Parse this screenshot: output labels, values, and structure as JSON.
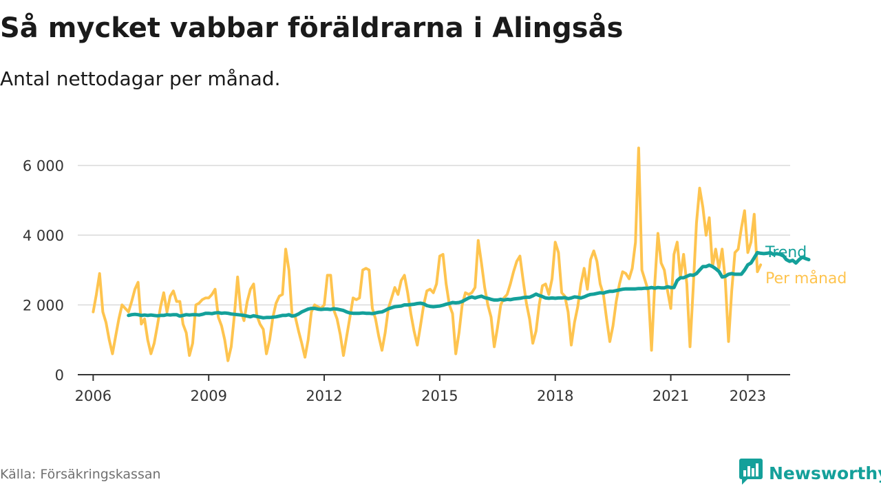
{
  "header": {
    "title": "Så mycket vabbar föräldrarna i Alingsås",
    "subtitle": "Antal nettodagar per månad."
  },
  "footer": {
    "source": "Källa: Försäkringskassan",
    "brand": "Newsworthy"
  },
  "colors": {
    "per_month": "#fec44f",
    "trend": "#14a09a",
    "grid": "#d9d9d9",
    "axis": "#333333"
  },
  "icons": {
    "brand_logo": "bar-chart-speech-bubble-icon"
  },
  "chart_data": {
    "type": "line",
    "title": "Så mycket vabbar föräldrarna i Alingsås",
    "subtitle": "Antal nettodagar per månad.",
    "xlabel": "",
    "ylabel": "",
    "x_start": "2006-01",
    "xlim": [
      2005.6,
      2024.1
    ],
    "ylim": [
      0,
      6800
    ],
    "y_ticks": [
      0,
      2000,
      4000,
      6000
    ],
    "y_tick_labels": [
      "0",
      "2 000",
      "4 000",
      "6 000"
    ],
    "x_ticks": [
      2006,
      2009,
      2012,
      2015,
      2018,
      2021,
      2023
    ],
    "x_tick_labels": [
      "2006",
      "2009",
      "2012",
      "2015",
      "2018",
      "2021",
      "2023"
    ],
    "grid": true,
    "legend": "direct labels at line ends",
    "series": [
      {
        "name": "Per månad",
        "color": "#fec44f",
        "start": "2006-01",
        "values": [
          1800,
          2300,
          2900,
          1800,
          1500,
          1000,
          600,
          1100,
          1600,
          2000,
          1900,
          1800,
          2100,
          2450,
          2650,
          1450,
          1600,
          1000,
          600,
          900,
          1400,
          1950,
          2350,
          1800,
          2250,
          2400,
          2100,
          2100,
          1450,
          1200,
          550,
          900,
          2000,
          2050,
          2150,
          2200,
          2200,
          2300,
          2450,
          1650,
          1400,
          1000,
          400,
          800,
          1700,
          2800,
          1850,
          1550,
          2100,
          2450,
          2600,
          1700,
          1450,
          1300,
          600,
          1000,
          1650,
          2050,
          2250,
          2300,
          3600,
          3000,
          1700,
          1650,
          1250,
          900,
          500,
          1000,
          1800,
          2000,
          1950,
          1900,
          2000,
          2850,
          2850,
          1850,
          1600,
          1150,
          550,
          1100,
          1650,
          2200,
          2150,
          2200,
          3000,
          3050,
          3000,
          1900,
          1600,
          1100,
          700,
          1200,
          1900,
          2200,
          2500,
          2300,
          2700,
          2850,
          2350,
          1750,
          1250,
          850,
          1400,
          2000,
          2400,
          2450,
          2350,
          2600,
          3400,
          3450,
          2600,
          2000,
          1750,
          600,
          1200,
          2000,
          2350,
          2300,
          2350,
          2500,
          3850,
          3200,
          2500,
          2000,
          1650,
          800,
          1350,
          2000,
          2200,
          2300,
          2600,
          2950,
          3250,
          3400,
          2700,
          2050,
          1600,
          900,
          1250,
          2000,
          2550,
          2600,
          2300,
          2750,
          3800,
          3500,
          2350,
          2250,
          1800,
          850,
          1500,
          1950,
          2600,
          3050,
          2450,
          3300,
          3550,
          3250,
          2600,
          2300,
          1600,
          950,
          1400,
          2100,
          2600,
          2950,
          2900,
          2750,
          3050,
          3800,
          6500,
          3000,
          2700,
          2400,
          700,
          2600,
          4050,
          3200,
          3000,
          2400,
          1900,
          3450,
          3800,
          2800,
          3450,
          2600,
          800,
          2500,
          4350,
          5350,
          4800,
          4000,
          4500,
          3100,
          3600,
          3050,
          3600,
          2700,
          950,
          2400,
          3500,
          3600,
          4200,
          4700,
          3500,
          3800,
          4600,
          2950,
          3150
        ]
      },
      {
        "name": "Trend",
        "color": "#14a09a",
        "start": "2006-12",
        "values": [
          1700,
          1720,
          1730,
          1720,
          1700,
          1710,
          1700,
          1710,
          1700,
          1690,
          1700,
          1700,
          1720,
          1710,
          1720,
          1720,
          1680,
          1700,
          1720,
          1710,
          1720,
          1720,
          1710,
          1730,
          1760,
          1760,
          1750,
          1770,
          1780,
          1760,
          1770,
          1760,
          1740,
          1730,
          1720,
          1710,
          1700,
          1680,
          1660,
          1690,
          1670,
          1650,
          1630,
          1640,
          1640,
          1650,
          1660,
          1680,
          1700,
          1700,
          1720,
          1680,
          1700,
          1740,
          1800,
          1840,
          1880,
          1900,
          1900,
          1880,
          1870,
          1880,
          1880,
          1870,
          1890,
          1880,
          1860,
          1840,
          1800,
          1770,
          1760,
          1760,
          1760,
          1770,
          1760,
          1760,
          1750,
          1770,
          1790,
          1800,
          1840,
          1890,
          1920,
          1950,
          1960,
          1970,
          2000,
          2000,
          2010,
          2020,
          2040,
          2050,
          2030,
          1980,
          1960,
          1950,
          1960,
          1970,
          1990,
          2020,
          2040,
          2070,
          2060,
          2070,
          2100,
          2150,
          2200,
          2230,
          2200,
          2230,
          2250,
          2210,
          2190,
          2160,
          2140,
          2140,
          2160,
          2140,
          2160,
          2150,
          2170,
          2180,
          2190,
          2210,
          2220,
          2220,
          2260,
          2310,
          2270,
          2240,
          2200,
          2190,
          2200,
          2190,
          2200,
          2200,
          2210,
          2180,
          2200,
          2230,
          2220,
          2200,
          2230,
          2270,
          2300,
          2310,
          2330,
          2350,
          2340,
          2370,
          2390,
          2390,
          2410,
          2430,
          2450,
          2460,
          2460,
          2460,
          2460,
          2470,
          2470,
          2480,
          2480,
          2500,
          2480,
          2500,
          2490,
          2490,
          2520,
          2500,
          2500,
          2700,
          2780,
          2780,
          2820,
          2860,
          2850,
          2900,
          3000,
          3100,
          3100,
          3140,
          3100,
          3040,
          2960,
          2800,
          2820,
          2880,
          2900,
          2880,
          2880,
          2880,
          3000,
          3150,
          3200,
          3350,
          3500,
          3480,
          3470,
          3480,
          3500,
          3450,
          3470,
          3450,
          3420,
          3300,
          3250,
          3280,
          3200,
          3300,
          3370,
          3330,
          3300
        ]
      }
    ]
  }
}
